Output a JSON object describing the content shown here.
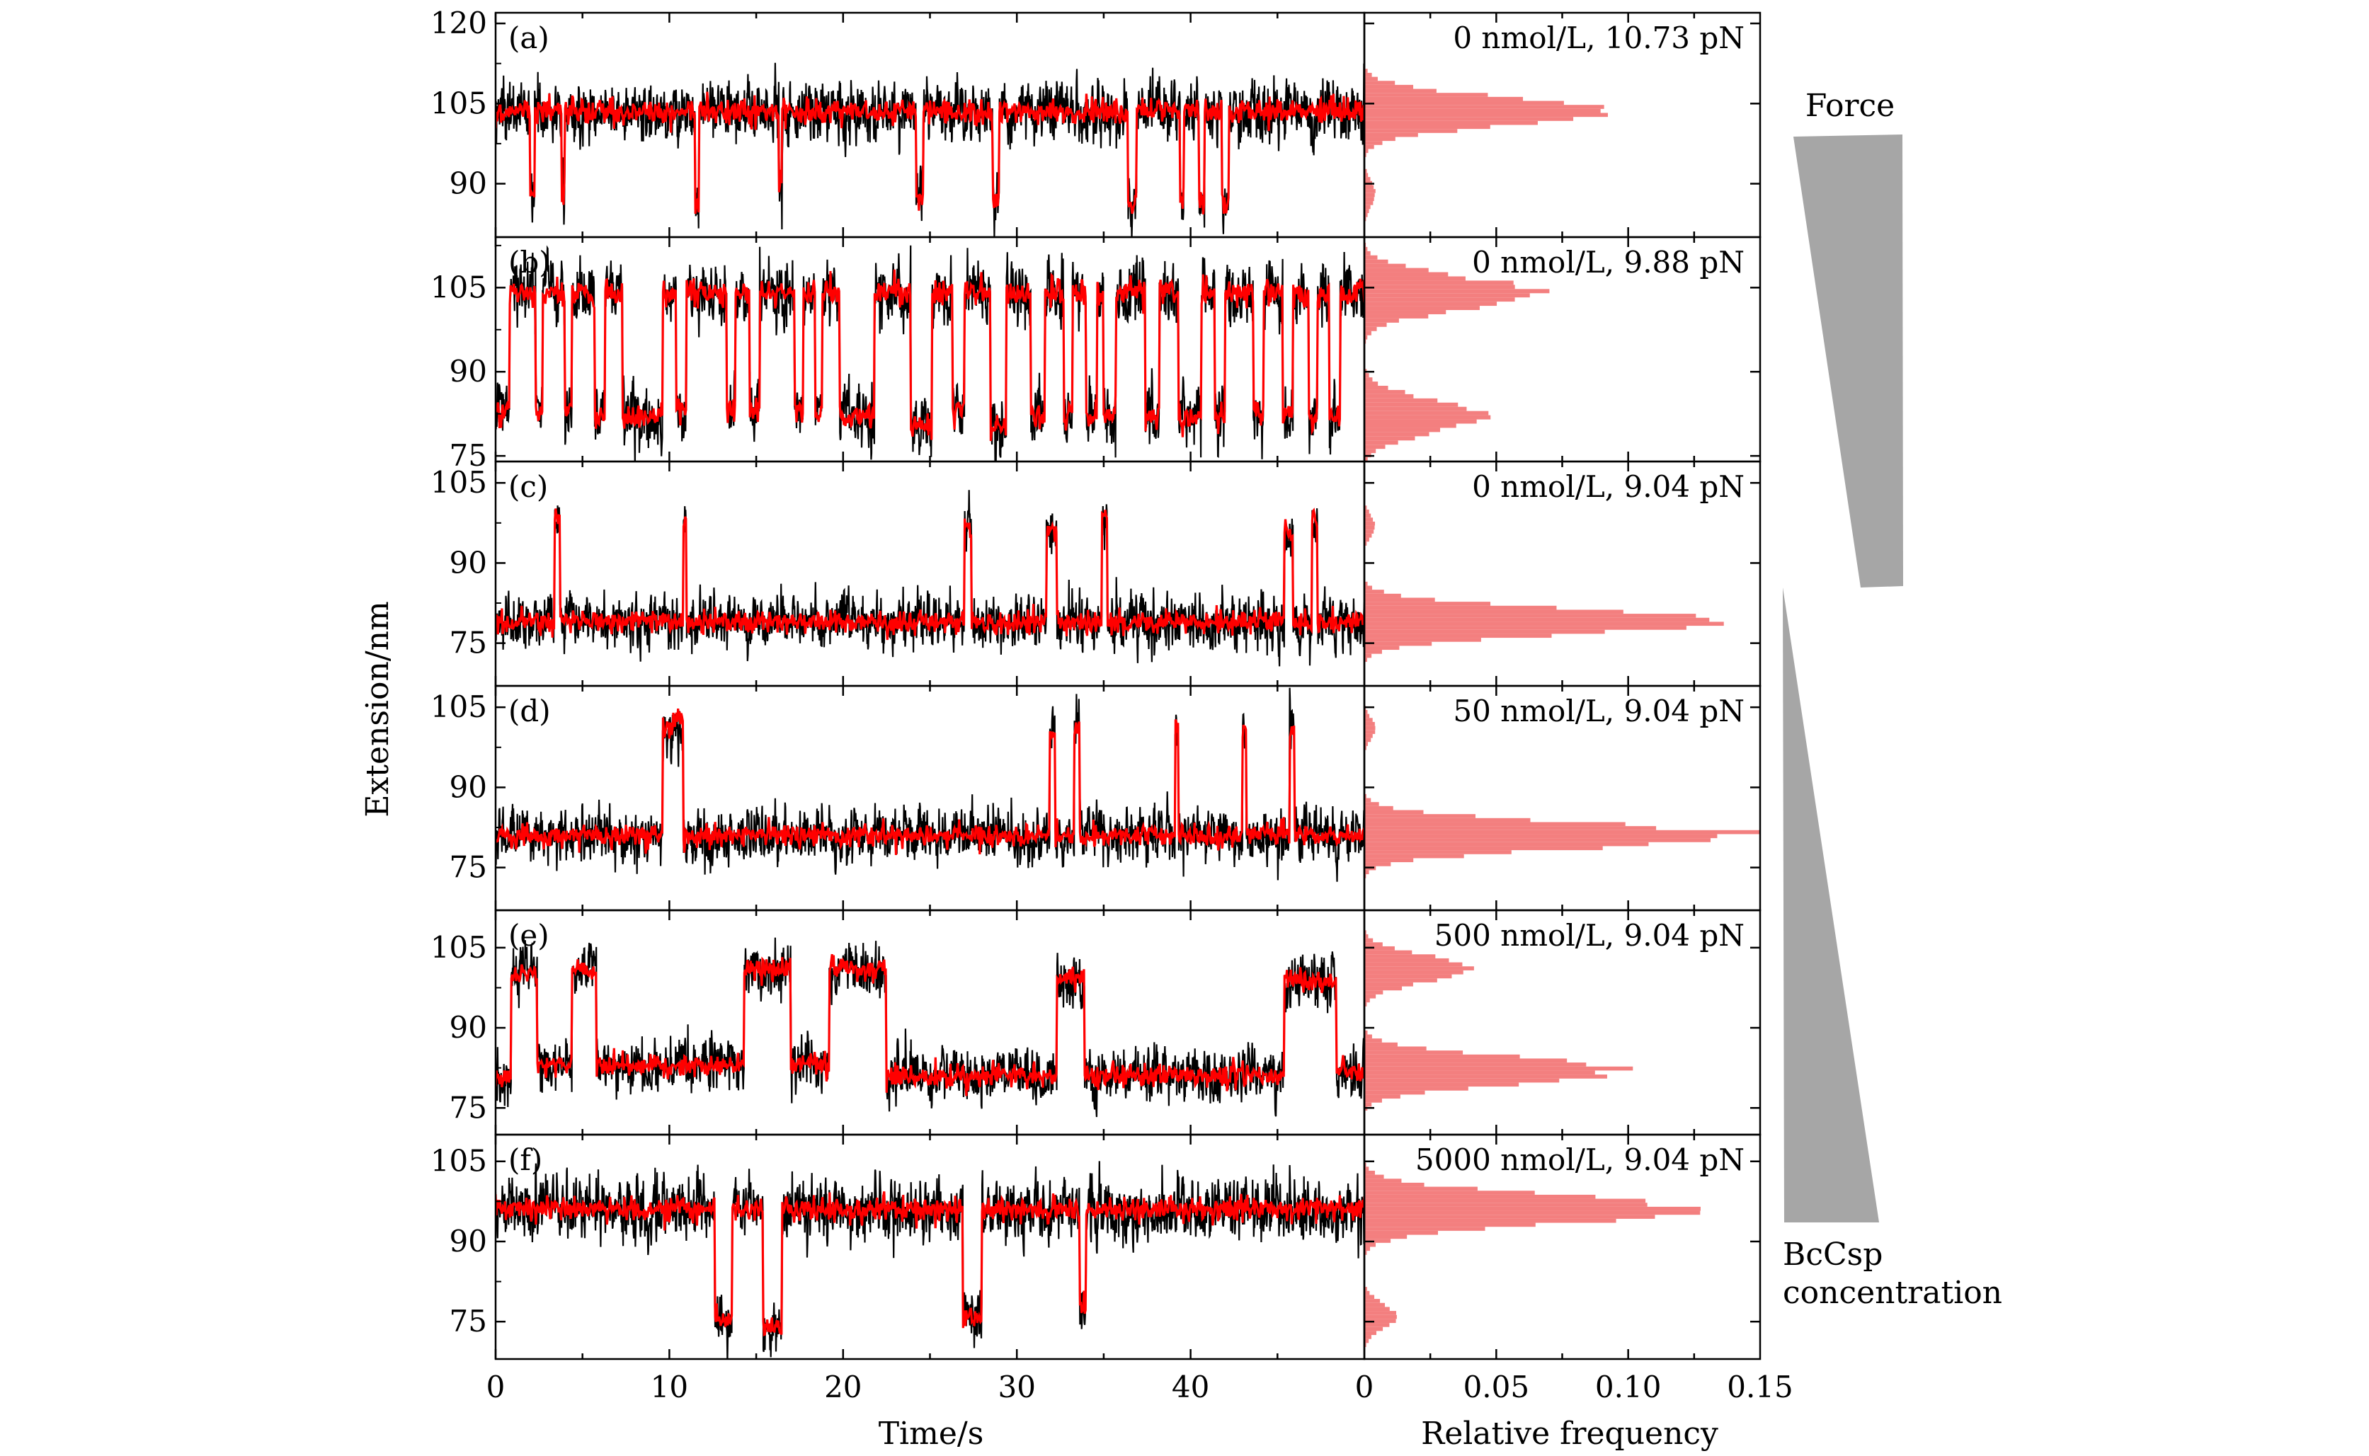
{
  "chart_data": {
    "type": "line",
    "title": "",
    "xlabel": "Time/s",
    "ylabel": "Extension/nm",
    "hist_xlabel": "Relative frequency",
    "x_ticks": [
      "0",
      "10",
      "20",
      "30",
      "40"
    ],
    "xlim": [
      0,
      50
    ],
    "hist_ticks": [
      "0",
      "0.05",
      "0.10",
      "0.15"
    ],
    "hist_xlim": [
      0,
      0.15
    ],
    "colors": {
      "raw": "#000000",
      "filtered": "#ff0000",
      "hist": "#f37f7f",
      "wedge": "#a6a6a6"
    },
    "series": [
      {
        "name": "raw trace",
        "color": "#000000",
        "description": "black noisy extension trace; noise amplitude listed per panel"
      },
      {
        "name": "filtered trace",
        "color": "#ff0000",
        "description": "red smoothed extension trace; step levels listed per panel as [t_start, t_end, extension]"
      }
    ],
    "panels": [
      {
        "tag": "(a)",
        "condition": "0 nmol/L, 10.73 pN",
        "ylim": [
          80,
          122
        ],
        "y_ticks": [
          90,
          105,
          120
        ],
        "noise": 2.6,
        "levels": [
          [
            0,
            2.0,
            103.5
          ],
          [
            2.0,
            2.25,
            88
          ],
          [
            2.25,
            3.8,
            103.5
          ],
          [
            3.8,
            4.0,
            88
          ],
          [
            4.0,
            11.5,
            103.5
          ],
          [
            11.5,
            11.7,
            86
          ],
          [
            11.7,
            16.3,
            103.5
          ],
          [
            16.3,
            16.5,
            89
          ],
          [
            16.5,
            24.2,
            103.5
          ],
          [
            24.2,
            24.6,
            87
          ],
          [
            24.6,
            28.6,
            103.5
          ],
          [
            28.6,
            29.0,
            86
          ],
          [
            29.0,
            36.4,
            103.5
          ],
          [
            36.4,
            36.9,
            86
          ],
          [
            36.9,
            39.4,
            103.5
          ],
          [
            39.4,
            39.6,
            88
          ],
          [
            39.6,
            40.5,
            103.5
          ],
          [
            40.5,
            40.8,
            87
          ],
          [
            40.8,
            41.8,
            103.5
          ],
          [
            41.8,
            42.2,
            86
          ],
          [
            42.2,
            50,
            103.5
          ]
        ],
        "hist": [
          {
            "center": 103.5,
            "peak": 0.09,
            "width": 2.6
          },
          {
            "center": 88,
            "peak": 0.004,
            "width": 2.5
          }
        ]
      },
      {
        "tag": "(b)",
        "condition": "0 nmol/L, 9.88 pN",
        "ylim": [
          74,
          114
        ],
        "y_ticks": [
          75,
          90,
          105
        ],
        "noise": 2.6,
        "levels": [
          [
            0,
            0.8,
            83
          ],
          [
            0.8,
            2.3,
            104
          ],
          [
            2.3,
            2.7,
            83
          ],
          [
            2.7,
            4.0,
            104
          ],
          [
            4.0,
            4.4,
            83
          ],
          [
            4.4,
            5.7,
            104
          ],
          [
            5.7,
            6.3,
            82
          ],
          [
            6.3,
            7.3,
            104
          ],
          [
            7.3,
            9.6,
            82
          ],
          [
            9.6,
            10.4,
            104
          ],
          [
            10.4,
            11.0,
            83
          ],
          [
            11.0,
            13.3,
            104
          ],
          [
            13.3,
            13.8,
            83
          ],
          [
            13.8,
            14.6,
            104
          ],
          [
            14.6,
            15.2,
            83
          ],
          [
            15.2,
            17.2,
            104
          ],
          [
            17.2,
            17.7,
            83
          ],
          [
            17.7,
            18.4,
            104
          ],
          [
            18.4,
            18.8,
            82
          ],
          [
            18.8,
            19.8,
            104
          ],
          [
            19.8,
            21.8,
            82
          ],
          [
            21.8,
            23.9,
            104
          ],
          [
            23.9,
            25.1,
            80
          ],
          [
            25.1,
            26.3,
            104
          ],
          [
            26.3,
            27.0,
            83
          ],
          [
            27.0,
            28.5,
            104
          ],
          [
            28.5,
            29.4,
            80
          ],
          [
            29.4,
            30.8,
            104
          ],
          [
            30.8,
            31.6,
            82
          ],
          [
            31.6,
            32.7,
            104
          ],
          [
            32.7,
            33.2,
            82
          ],
          [
            33.2,
            34.0,
            104
          ],
          [
            34.0,
            34.6,
            82
          ],
          [
            34.6,
            35.0,
            104
          ],
          [
            35.0,
            35.7,
            82
          ],
          [
            35.7,
            37.4,
            104
          ],
          [
            37.4,
            38.2,
            82
          ],
          [
            38.2,
            39.3,
            104
          ],
          [
            39.3,
            40.6,
            82
          ],
          [
            40.6,
            41.4,
            104
          ],
          [
            41.4,
            42.0,
            82
          ],
          [
            42.0,
            43.6,
            104
          ],
          [
            43.6,
            44.2,
            82
          ],
          [
            44.2,
            45.3,
            104
          ],
          [
            45.3,
            45.9,
            82
          ],
          [
            45.9,
            46.8,
            104
          ],
          [
            46.8,
            47.3,
            82
          ],
          [
            47.3,
            48.0,
            104
          ],
          [
            48.0,
            48.6,
            82
          ],
          [
            48.6,
            50,
            104
          ]
        ],
        "hist": [
          {
            "center": 104,
            "peak": 0.066,
            "width": 2.8
          },
          {
            "center": 82,
            "peak": 0.044,
            "width": 2.9
          }
        ]
      },
      {
        "tag": "(c)",
        "condition": "0 nmol/L, 9.04 pN",
        "ylim": [
          67,
          109
        ],
        "y_ticks": [
          75,
          90,
          105
        ],
        "noise": 2.3,
        "levels": [
          [
            0,
            3.4,
            79
          ],
          [
            3.4,
            3.7,
            98
          ],
          [
            3.7,
            10.8,
            79
          ],
          [
            10.8,
            11.0,
            98
          ],
          [
            11.0,
            27.0,
            79
          ],
          [
            27.0,
            27.4,
            97
          ],
          [
            27.4,
            31.7,
            79
          ],
          [
            31.7,
            32.3,
            96
          ],
          [
            32.3,
            34.9,
            79
          ],
          [
            34.9,
            35.2,
            99
          ],
          [
            35.2,
            45.4,
            79
          ],
          [
            45.4,
            45.9,
            96
          ],
          [
            45.9,
            47.0,
            79
          ],
          [
            47.0,
            47.3,
            98
          ],
          [
            47.3,
            50,
            79
          ]
        ],
        "hist": [
          {
            "center": 79,
            "peak": 0.135,
            "width": 2.3
          },
          {
            "center": 97,
            "peak": 0.004,
            "width": 2.0
          }
        ]
      },
      {
        "tag": "(d)",
        "condition": "50 nmol/L, 9.04 pN",
        "ylim": [
          67,
          109
        ],
        "y_ticks": [
          75,
          90,
          105
        ],
        "noise": 2.3,
        "levels": [
          [
            0,
            9.6,
            81
          ],
          [
            9.6,
            10.2,
            101
          ],
          [
            10.2,
            10.8,
            103
          ],
          [
            10.8,
            31.9,
            81
          ],
          [
            31.9,
            32.2,
            100
          ],
          [
            32.2,
            33.3,
            81
          ],
          [
            33.3,
            33.6,
            101
          ],
          [
            33.6,
            39.1,
            81
          ],
          [
            39.1,
            39.3,
            102
          ],
          [
            39.3,
            43.0,
            81
          ],
          [
            43.0,
            43.2,
            100
          ],
          [
            43.2,
            45.7,
            81
          ],
          [
            45.7,
            46.0,
            101
          ],
          [
            46.0,
            50,
            81
          ]
        ],
        "hist": [
          {
            "center": 81,
            "peak": 0.145,
            "width": 2.3
          },
          {
            "center": 101,
            "peak": 0.004,
            "width": 2.0
          }
        ]
      },
      {
        "tag": "(e)",
        "condition": "500 nmol/L, 9.04 pN",
        "ylim": [
          70,
          112
        ],
        "y_ticks": [
          75,
          90,
          105
        ],
        "noise": 2.3,
        "levels": [
          [
            0,
            0.9,
            81
          ],
          [
            0.9,
            2.4,
            100
          ],
          [
            2.4,
            4.4,
            83
          ],
          [
            4.4,
            5.8,
            101
          ],
          [
            5.8,
            14.3,
            83
          ],
          [
            14.3,
            17.0,
            101
          ],
          [
            17.0,
            19.2,
            83
          ],
          [
            19.2,
            22.5,
            101
          ],
          [
            22.5,
            32.3,
            81
          ],
          [
            32.3,
            33.9,
            99
          ],
          [
            33.9,
            45.4,
            81
          ],
          [
            45.4,
            48.4,
            99
          ],
          [
            48.4,
            50,
            82
          ]
        ],
        "hist": [
          {
            "center": 101,
            "peak": 0.041,
            "width": 2.4
          },
          {
            "center": 82,
            "peak": 0.098,
            "width": 2.4
          }
        ]
      },
      {
        "tag": "(f)",
        "condition": "5000 nmol/L, 9.04 pN",
        "ylim": [
          68,
          110
        ],
        "y_ticks": [
          75,
          90,
          105
        ],
        "noise": 2.6,
        "levels": [
          [
            0,
            12.6,
            96
          ],
          [
            12.6,
            13.6,
            75
          ],
          [
            13.6,
            15.4,
            96
          ],
          [
            15.4,
            16.5,
            74
          ],
          [
            16.5,
            26.9,
            96
          ],
          [
            26.9,
            28.0,
            76
          ],
          [
            28.0,
            33.6,
            96
          ],
          [
            33.6,
            34.0,
            78
          ],
          [
            34.0,
            50,
            96
          ]
        ],
        "hist": [
          {
            "center": 96,
            "peak": 0.122,
            "width": 2.6
          },
          {
            "center": 76,
            "peak": 0.012,
            "width": 2.3
          }
        ]
      }
    ],
    "annotations": {
      "force_label": "Force",
      "concentration_label_line1": "BcCsp",
      "concentration_label_line2": "concentration"
    }
  }
}
